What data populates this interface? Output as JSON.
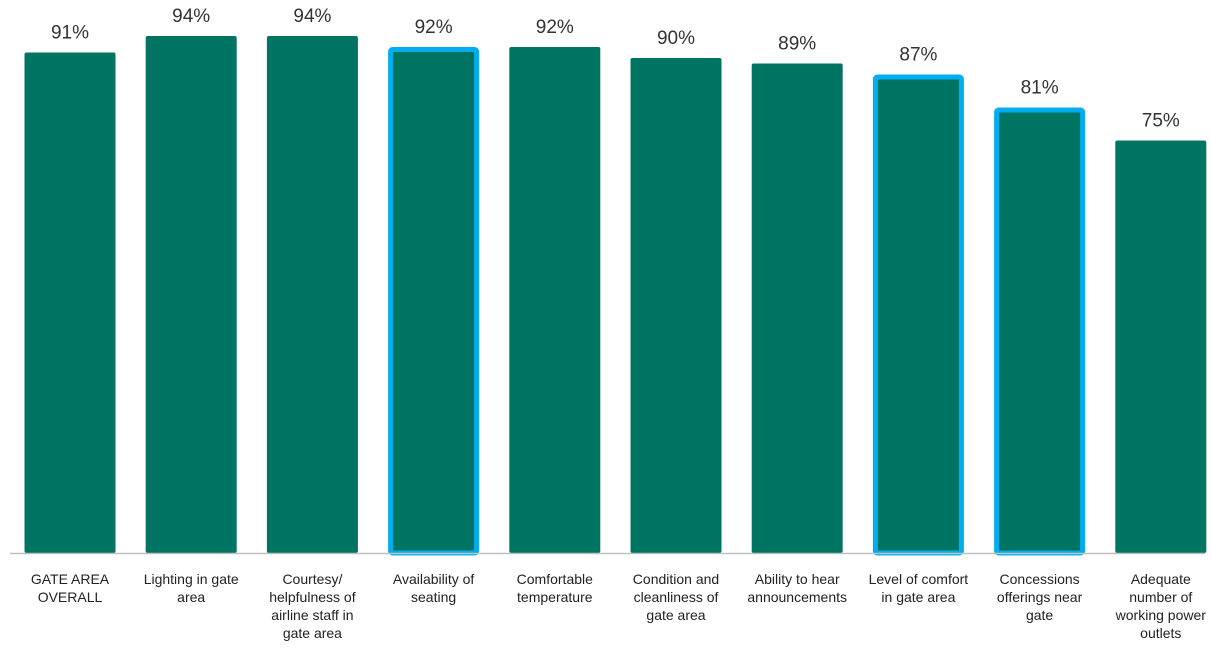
{
  "chart_data": {
    "type": "bar",
    "title": "",
    "xlabel": "",
    "ylabel": "",
    "ylim": [
      0,
      100
    ],
    "grid": false,
    "value_suffix": "%",
    "categories": [
      [
        "GATE AREA",
        "OVERALL"
      ],
      [
        "Lighting in gate",
        "area"
      ],
      [
        "Courtesy/",
        "helpfulness of",
        "airline staff in",
        "gate area"
      ],
      [
        "Availability of",
        "seating"
      ],
      [
        "Comfortable",
        "temperature"
      ],
      [
        "Condition and",
        "cleanliness of",
        "gate area"
      ],
      [
        "Ability to hear",
        "announcements"
      ],
      [
        "Level of comfort",
        "in gate area"
      ],
      [
        "Concessions",
        "offerings near",
        "gate"
      ],
      [
        "Adequate",
        "number of",
        "working power",
        "outlets"
      ]
    ],
    "values": [
      91,
      94,
      94,
      92,
      92,
      90,
      89,
      87,
      81,
      75
    ],
    "value_labels": [
      "91%",
      "94%",
      "94%",
      "92%",
      "92%",
      "90%",
      "89%",
      "87%",
      "81%",
      "75%"
    ],
    "highlighted": [
      false,
      false,
      false,
      true,
      false,
      false,
      false,
      true,
      true,
      false
    ],
    "colors": {
      "bar": "#007463",
      "highlight_border": "#00aeef",
      "axis": "#bfbfbf"
    }
  }
}
